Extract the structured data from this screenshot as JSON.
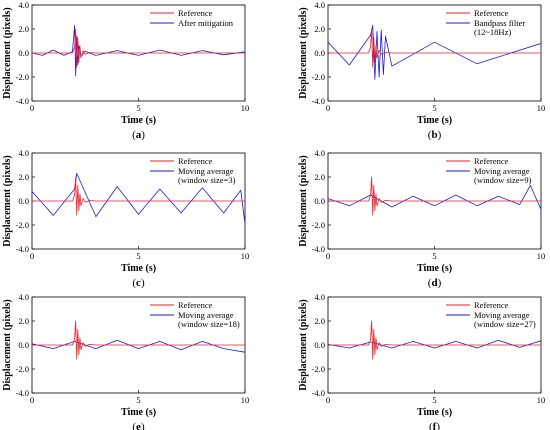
{
  "chart_data": [
    {
      "type": "line",
      "panel_label": "a",
      "xlabel": "Time (s)",
      "ylabel": "Displacement (pixels)",
      "xlim": [
        0,
        10
      ],
      "ylim": [
        -4.0,
        4.0
      ],
      "x_ticks": [
        "0",
        "5",
        "10"
      ],
      "y_ticks": [
        "4.0",
        "2.0",
        "0.0",
        "-2.0",
        "-4.0"
      ],
      "grid": false,
      "legend": "top-right",
      "series": [
        {
          "name": "Reference",
          "color": "#e8202a",
          "x": [
            0,
            1.9,
            2.0,
            2.05,
            2.1,
            2.15,
            2.2,
            2.25,
            2.3,
            2.4,
            2.5,
            2.7,
            3.0,
            3.5,
            10
          ],
          "y": [
            0,
            0,
            0.5,
            2.0,
            -1.2,
            1.3,
            -0.8,
            0.6,
            -0.4,
            0.2,
            -0.1,
            0.05,
            0,
            0,
            0
          ]
        },
        {
          "name": "After mitigation",
          "color": "#1c1cd6",
          "x": [
            0,
            0.5,
            1.0,
            1.5,
            1.9,
            2.0,
            2.05,
            2.1,
            2.15,
            2.2,
            2.3,
            2.5,
            3.0,
            4.0,
            5.0,
            6.0,
            7.0,
            8.0,
            9.0,
            10
          ],
          "y": [
            0.0,
            -0.2,
            0.25,
            -0.2,
            0.1,
            2.3,
            -1.9,
            1.4,
            -1.0,
            0.6,
            -0.3,
            0.15,
            -0.2,
            0.2,
            -0.2,
            0.25,
            -0.2,
            0.2,
            -0.15,
            0.1
          ]
        }
      ]
    },
    {
      "type": "line",
      "panel_label": "b",
      "xlabel": "Time (s)",
      "ylabel": "Displacement (pixels)",
      "xlim": [
        0,
        10
      ],
      "ylim": [
        -4.0,
        4.0
      ],
      "x_ticks": [
        "0",
        "5",
        "10"
      ],
      "y_ticks": [
        "4.0",
        "2.0",
        "0.0",
        "-2.0",
        "-4.0"
      ],
      "grid": false,
      "legend": "top-right",
      "series": [
        {
          "name": "Reference",
          "color": "#e8202a",
          "x": [
            0,
            1.9,
            2.0,
            2.05,
            2.1,
            2.15,
            2.2,
            2.25,
            2.3,
            2.4,
            2.5,
            2.7,
            3.0,
            3.5,
            10
          ],
          "y": [
            0,
            0,
            0.5,
            2.0,
            -1.2,
            1.3,
            -0.8,
            0.6,
            -0.4,
            0.2,
            -0.1,
            0.05,
            0,
            0,
            0
          ]
        },
        {
          "name": "Bandpass filter (12~18Hz)",
          "color": "#1c1cd6",
          "x": [
            0,
            1.0,
            2.0,
            2.1,
            2.2,
            2.3,
            2.4,
            2.5,
            2.6,
            2.7,
            3.0,
            5.0,
            7.0,
            10
          ],
          "y": [
            0.9,
            -1.0,
            1.5,
            2.3,
            -2.2,
            1.8,
            -2.0,
            1.9,
            -1.8,
            1.4,
            -1.1,
            0.9,
            -0.9,
            0.8
          ]
        }
      ]
    },
    {
      "type": "line",
      "panel_label": "c",
      "xlabel": "Time (s)",
      "ylabel": "Displacement (pixels)",
      "xlim": [
        0,
        10
      ],
      "ylim": [
        -4.0,
        4.0
      ],
      "x_ticks": [
        "0",
        "5",
        "10"
      ],
      "y_ticks": [
        "4.0",
        "2.0",
        "0.0",
        "-2.0",
        "-4.0"
      ],
      "grid": false,
      "legend": "top-right",
      "series": [
        {
          "name": "Reference",
          "color": "#e8202a",
          "x": [
            0,
            1.9,
            2.0,
            2.05,
            2.1,
            2.15,
            2.2,
            2.25,
            2.3,
            2.4,
            2.5,
            2.7,
            3.0,
            3.5,
            10
          ],
          "y": [
            0,
            0,
            0.5,
            2.0,
            -1.2,
            1.3,
            -0.8,
            0.6,
            -0.4,
            0.2,
            -0.1,
            0.05,
            0,
            0,
            0
          ]
        },
        {
          "name": "Moving average (window size=3)",
          "color": "#1c1cd6",
          "x": [
            0,
            1.0,
            2.0,
            2.1,
            3.0,
            4.0,
            5.0,
            6.0,
            7.0,
            8.0,
            9.0,
            9.8,
            10
          ],
          "y": [
            0.8,
            -1.2,
            1.0,
            2.3,
            -1.3,
            1.2,
            -1.1,
            1.0,
            -1.0,
            1.1,
            -1.0,
            0.9,
            -1.9
          ]
        }
      ]
    },
    {
      "type": "line",
      "panel_label": "d",
      "xlabel": "Time (s)",
      "ylabel": "Displacement (pixels)",
      "xlim": [
        0,
        10
      ],
      "ylim": [
        -4.0,
        4.0
      ],
      "x_ticks": [
        "0",
        "5",
        "10"
      ],
      "y_ticks": [
        "4.0",
        "2.0",
        "0.0",
        "-2.0",
        "-4.0"
      ],
      "grid": false,
      "legend": "top-right",
      "series": [
        {
          "name": "Reference",
          "color": "#e8202a",
          "x": [
            0,
            1.9,
            2.0,
            2.05,
            2.1,
            2.15,
            2.2,
            2.25,
            2.3,
            2.4,
            2.5,
            2.7,
            3.0,
            3.5,
            10
          ],
          "y": [
            0,
            0,
            0.5,
            2.0,
            -1.2,
            1.3,
            -0.8,
            0.6,
            -0.4,
            0.2,
            -0.1,
            0.05,
            0,
            0,
            0
          ]
        },
        {
          "name": "Moving average (window size=9)",
          "color": "#1c1cd6",
          "x": [
            0,
            1.0,
            2.0,
            3.0,
            4.0,
            5.0,
            6.0,
            7.0,
            8.0,
            9.0,
            9.5,
            10
          ],
          "y": [
            0.2,
            -0.4,
            0.5,
            -0.5,
            0.4,
            -0.4,
            0.5,
            -0.4,
            0.4,
            -0.3,
            1.3,
            -0.7
          ]
        }
      ]
    },
    {
      "type": "line",
      "panel_label": "e",
      "xlabel": "Time (s)",
      "ylabel": "Displacement (pixels)",
      "xlim": [
        0,
        10
      ],
      "ylim": [
        -4.0,
        4.0
      ],
      "x_ticks": [
        "0",
        "5",
        "10"
      ],
      "y_ticks": [
        "4.0",
        "2.0",
        "0.0",
        "-2.0",
        "-4.0"
      ],
      "grid": false,
      "legend": "top-right",
      "series": [
        {
          "name": "Reference",
          "color": "#e8202a",
          "x": [
            0,
            1.9,
            2.0,
            2.05,
            2.1,
            2.15,
            2.2,
            2.25,
            2.3,
            2.4,
            2.5,
            2.7,
            3.0,
            3.5,
            10
          ],
          "y": [
            0,
            0,
            0.5,
            2.0,
            -1.2,
            1.3,
            -0.8,
            0.6,
            -0.4,
            0.2,
            -0.1,
            0.05,
            0,
            0,
            0
          ]
        },
        {
          "name": "Moving average (window size=18)",
          "color": "#1c1cd6",
          "x": [
            0,
            1.0,
            2.0,
            3.0,
            4.0,
            5.0,
            6.0,
            7.0,
            8.0,
            9.0,
            10
          ],
          "y": [
            0.1,
            -0.3,
            0.3,
            -0.3,
            0.4,
            -0.3,
            0.3,
            -0.4,
            0.3,
            -0.3,
            -0.6
          ]
        }
      ]
    },
    {
      "type": "line",
      "panel_label": "f",
      "xlabel": "Time (s)",
      "ylabel": "Displacement (pixels)",
      "xlim": [
        0,
        10
      ],
      "ylim": [
        -4.0,
        4.0
      ],
      "x_ticks": [
        "0",
        "5",
        "10"
      ],
      "y_ticks": [
        "4.0",
        "2.0",
        "0.0",
        "-2.0",
        "-4.0"
      ],
      "grid": false,
      "legend": "top-right",
      "series": [
        {
          "name": "Reference",
          "color": "#e8202a",
          "x": [
            0,
            1.9,
            2.0,
            2.05,
            2.1,
            2.15,
            2.2,
            2.25,
            2.3,
            2.4,
            2.5,
            2.7,
            3.0,
            3.5,
            10
          ],
          "y": [
            0,
            0,
            0.5,
            2.0,
            -1.2,
            1.3,
            -0.8,
            0.6,
            -0.4,
            0.2,
            -0.1,
            0.05,
            0,
            0,
            0
          ]
        },
        {
          "name": "Moving average (window size=27)",
          "color": "#1c1cd6",
          "x": [
            0,
            1.0,
            2.0,
            3.0,
            4.0,
            5.0,
            6.0,
            7.0,
            8.0,
            9.0,
            10
          ],
          "y": [
            0.05,
            -0.25,
            0.25,
            -0.25,
            0.3,
            -0.25,
            0.3,
            -0.25,
            0.4,
            -0.2,
            0.35
          ]
        }
      ]
    }
  ]
}
